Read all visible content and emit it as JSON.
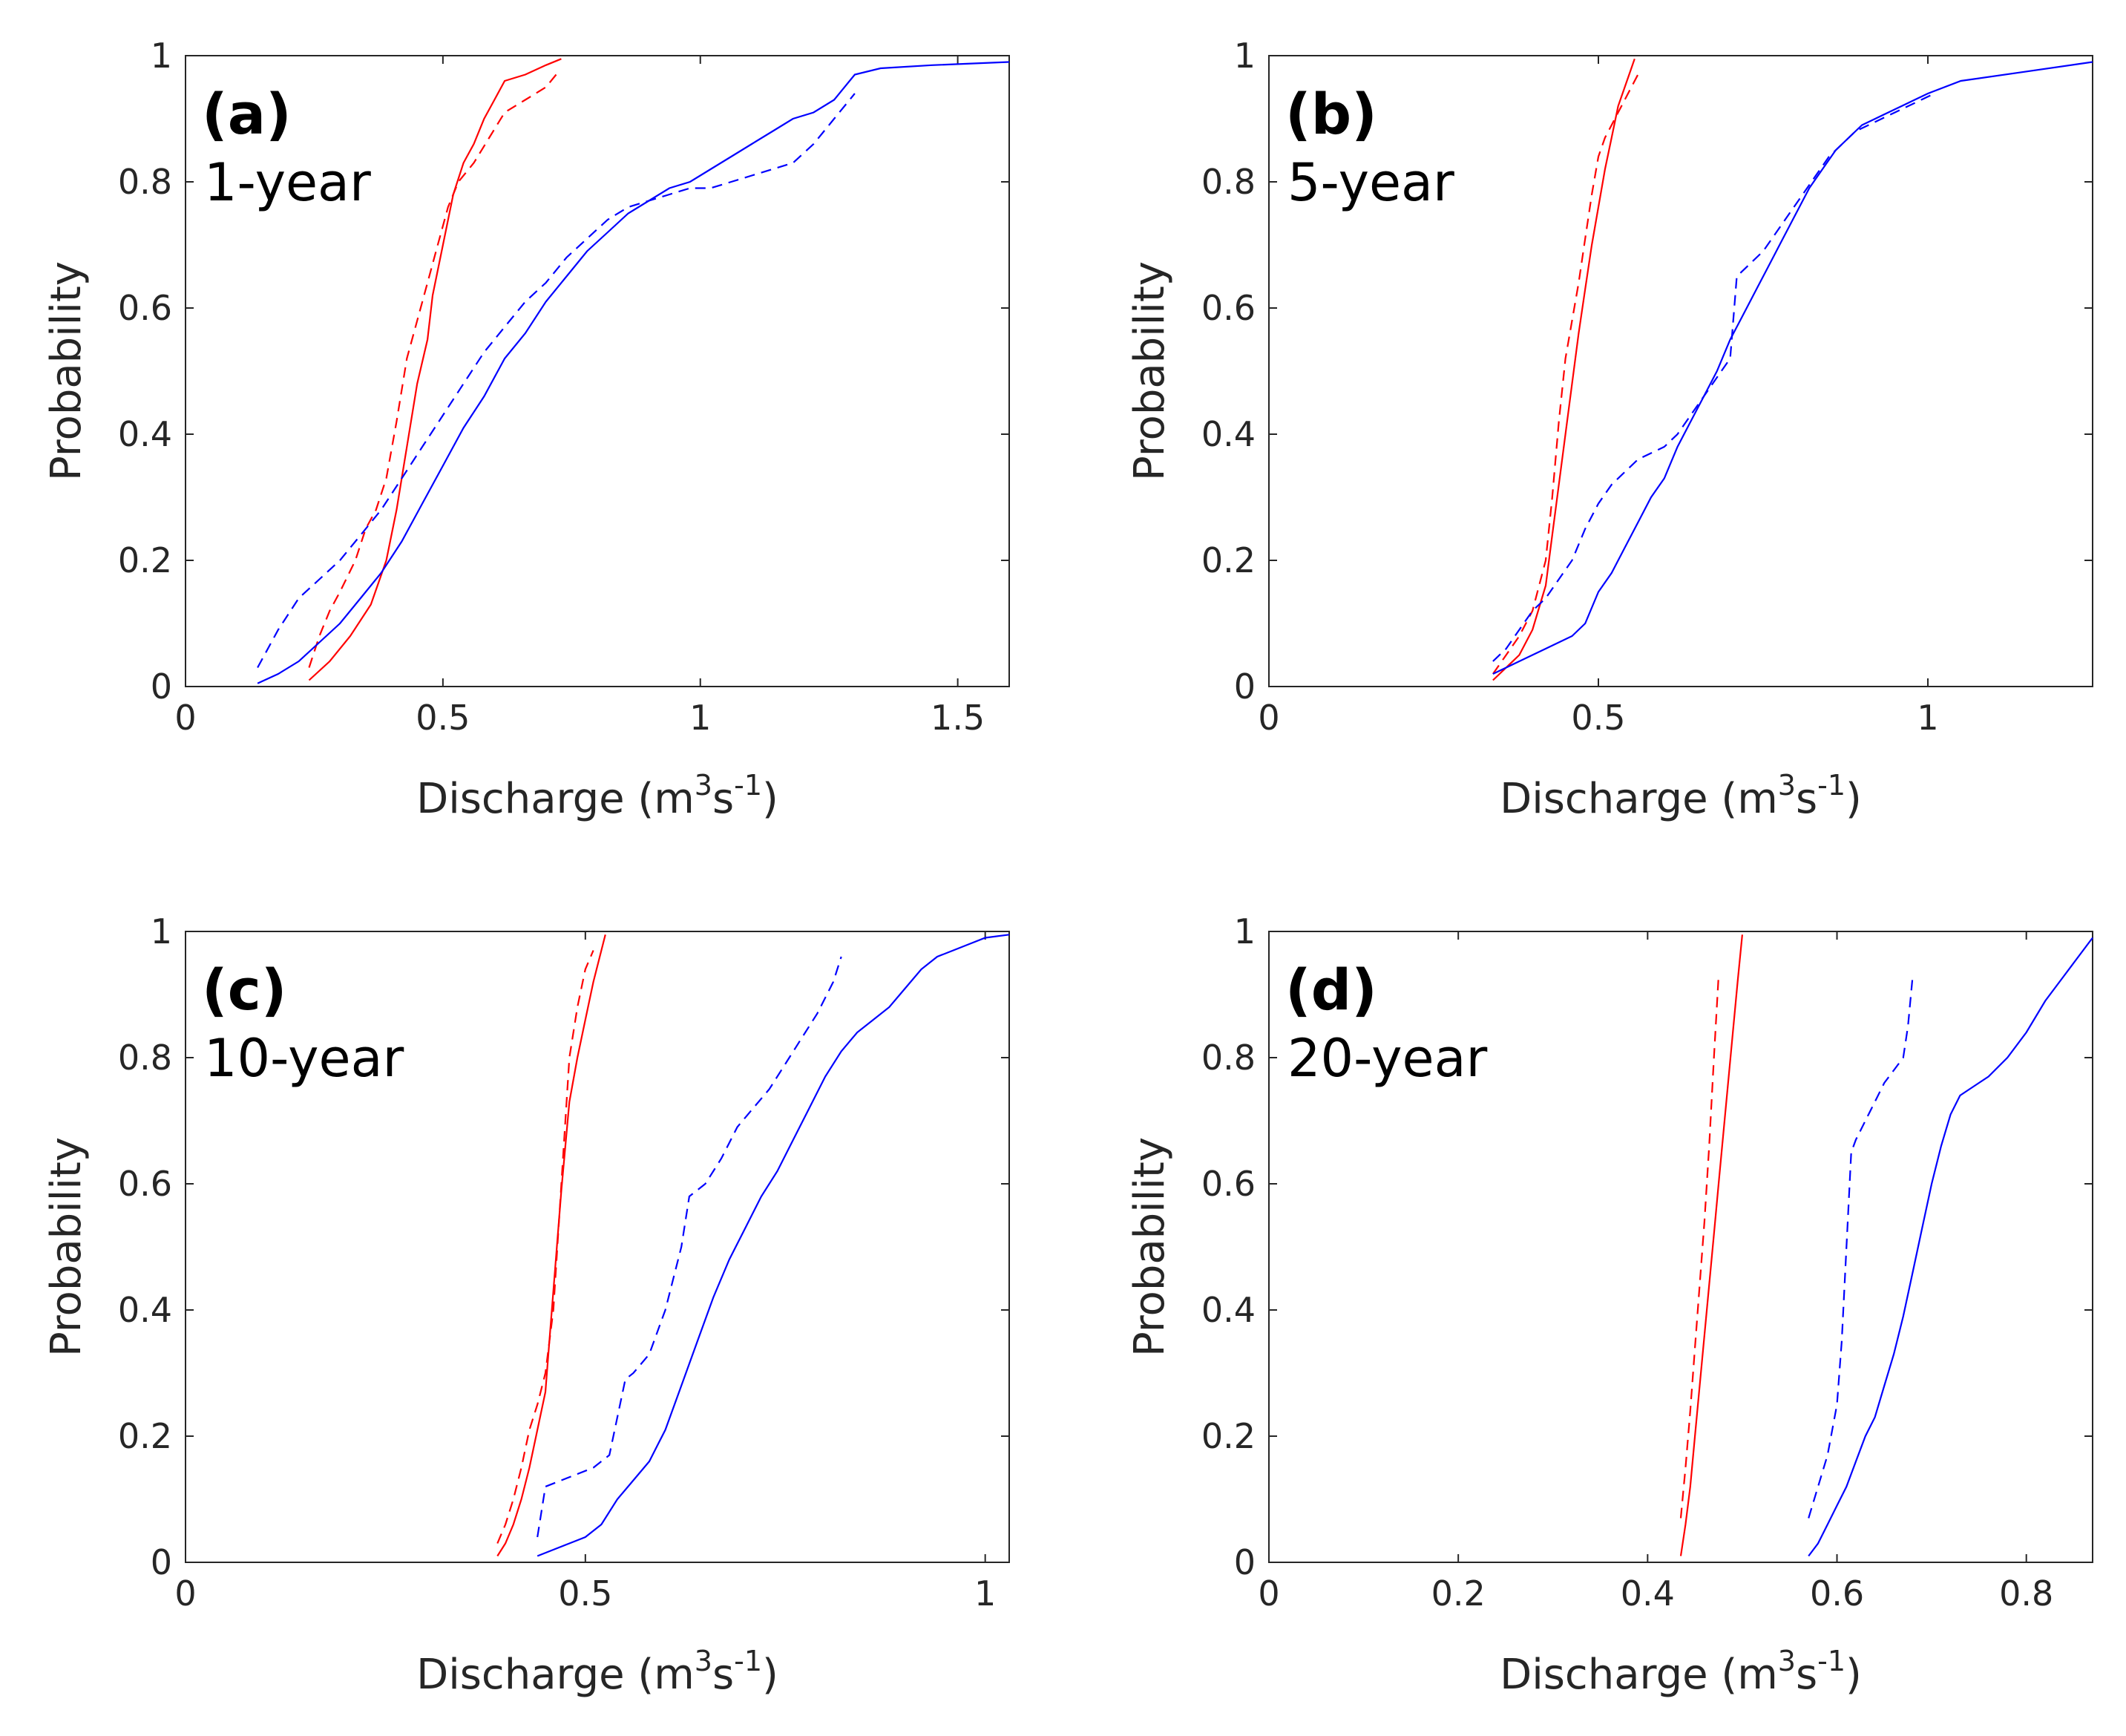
{
  "figure": {
    "xlabel_main": "Discharge (m",
    "xlabel_sup1": "3",
    "xlabel_mid": "s",
    "xlabel_sup2": "-1",
    "xlabel_end": ")",
    "ylabel": "Probability"
  },
  "colors": {
    "red": "#ff0000",
    "blue": "#0000ff",
    "axis": "#262626"
  },
  "chart_data": [
    {
      "type": "line",
      "panel_label": "(a)",
      "duration_label": "1-year",
      "xlim": [
        0,
        1.6
      ],
      "ylim": [
        0,
        1
      ],
      "xticks": [
        0,
        0.5,
        1,
        1.5
      ],
      "xtick_labels": [
        "0",
        "0.5",
        "1",
        "1.5"
      ],
      "yticks": [
        0,
        0.2,
        0.4,
        0.6,
        0.8,
        1
      ],
      "ytick_labels": [
        "0",
        "0.2",
        "0.4",
        "0.6",
        "0.8",
        "1"
      ],
      "series": [
        {
          "name": "red-solid",
          "color": "red",
          "dash": false,
          "x": [
            0.24,
            0.28,
            0.32,
            0.36,
            0.39,
            0.41,
            0.43,
            0.45,
            0.47,
            0.48,
            0.5,
            0.52,
            0.54,
            0.56,
            0.58,
            0.6,
            0.62,
            0.66,
            0.7,
            0.73
          ],
          "y": [
            0.01,
            0.04,
            0.08,
            0.13,
            0.2,
            0.28,
            0.38,
            0.48,
            0.55,
            0.62,
            0.7,
            0.78,
            0.83,
            0.86,
            0.9,
            0.93,
            0.96,
            0.97,
            0.985,
            0.995
          ]
        },
        {
          "name": "red-dashed",
          "color": "red",
          "dash": true,
          "x": [
            0.24,
            0.26,
            0.28,
            0.3,
            0.33,
            0.35,
            0.37,
            0.39,
            0.41,
            0.43,
            0.45,
            0.47,
            0.49,
            0.51,
            0.53,
            0.56,
            0.59,
            0.62,
            0.66,
            0.7,
            0.72
          ],
          "y": [
            0.03,
            0.08,
            0.12,
            0.15,
            0.2,
            0.25,
            0.28,
            0.33,
            0.42,
            0.52,
            0.58,
            0.64,
            0.7,
            0.76,
            0.8,
            0.83,
            0.87,
            0.91,
            0.93,
            0.95,
            0.97
          ]
        },
        {
          "name": "blue-solid",
          "color": "blue",
          "dash": false,
          "x": [
            0.14,
            0.18,
            0.22,
            0.26,
            0.3,
            0.34,
            0.38,
            0.42,
            0.46,
            0.5,
            0.54,
            0.58,
            0.62,
            0.66,
            0.7,
            0.74,
            0.78,
            0.82,
            0.86,
            0.9,
            0.94,
            0.98,
            1.02,
            1.06,
            1.1,
            1.14,
            1.18,
            1.22,
            1.26,
            1.3,
            1.35,
            1.45,
            1.6
          ],
          "y": [
            0.005,
            0.02,
            0.04,
            0.07,
            0.1,
            0.14,
            0.18,
            0.23,
            0.29,
            0.35,
            0.41,
            0.46,
            0.52,
            0.56,
            0.61,
            0.65,
            0.69,
            0.72,
            0.75,
            0.77,
            0.79,
            0.8,
            0.82,
            0.84,
            0.86,
            0.88,
            0.9,
            0.91,
            0.93,
            0.97,
            0.98,
            0.985,
            0.99
          ]
        },
        {
          "name": "blue-dashed",
          "color": "blue",
          "dash": true,
          "x": [
            0.14,
            0.18,
            0.22,
            0.26,
            0.3,
            0.34,
            0.38,
            0.42,
            0.46,
            0.5,
            0.54,
            0.58,
            0.62,
            0.66,
            0.7,
            0.74,
            0.78,
            0.82,
            0.86,
            0.9,
            0.94,
            0.98,
            1.02,
            1.06,
            1.1,
            1.14,
            1.18,
            1.22,
            1.26,
            1.3
          ],
          "y": [
            0.03,
            0.09,
            0.14,
            0.17,
            0.2,
            0.24,
            0.28,
            0.33,
            0.38,
            0.43,
            0.48,
            0.53,
            0.57,
            0.61,
            0.64,
            0.68,
            0.71,
            0.74,
            0.76,
            0.77,
            0.78,
            0.79,
            0.79,
            0.8,
            0.81,
            0.82,
            0.83,
            0.86,
            0.9,
            0.94
          ]
        }
      ]
    },
    {
      "type": "line",
      "panel_label": "(b)",
      "duration_label": "5-year",
      "xlim": [
        0,
        1.25
      ],
      "ylim": [
        0,
        1
      ],
      "xticks": [
        0,
        0.5,
        1
      ],
      "xtick_labels": [
        "0",
        "0.5",
        "1"
      ],
      "yticks": [
        0,
        0.2,
        0.4,
        0.6,
        0.8,
        1
      ],
      "ytick_labels": [
        "0",
        "0.2",
        "0.4",
        "0.6",
        "0.8",
        "1"
      ],
      "series": [
        {
          "name": "red-solid",
          "color": "red",
          "dash": false,
          "x": [
            0.34,
            0.36,
            0.38,
            0.4,
            0.42,
            0.43,
            0.44,
            0.45,
            0.46,
            0.47,
            0.48,
            0.49,
            0.5,
            0.51,
            0.52,
            0.53,
            0.54,
            0.55,
            0.555
          ],
          "y": [
            0.01,
            0.03,
            0.05,
            0.09,
            0.16,
            0.24,
            0.32,
            0.4,
            0.48,
            0.56,
            0.63,
            0.7,
            0.76,
            0.82,
            0.87,
            0.92,
            0.95,
            0.98,
            0.995
          ]
        },
        {
          "name": "red-dashed",
          "color": "red",
          "dash": true,
          "x": [
            0.34,
            0.36,
            0.38,
            0.4,
            0.42,
            0.43,
            0.44,
            0.45,
            0.46,
            0.47,
            0.48,
            0.49,
            0.5,
            0.51,
            0.52,
            0.53,
            0.54,
            0.55,
            0.56
          ],
          "y": [
            0.02,
            0.05,
            0.08,
            0.12,
            0.2,
            0.3,
            0.42,
            0.52,
            0.58,
            0.64,
            0.71,
            0.78,
            0.84,
            0.87,
            0.89,
            0.91,
            0.93,
            0.95,
            0.97
          ]
        },
        {
          "name": "blue-solid",
          "color": "blue",
          "dash": false,
          "x": [
            0.34,
            0.36,
            0.38,
            0.4,
            0.42,
            0.44,
            0.46,
            0.48,
            0.5,
            0.52,
            0.54,
            0.56,
            0.58,
            0.6,
            0.62,
            0.64,
            0.66,
            0.68,
            0.7,
            0.72,
            0.74,
            0.76,
            0.78,
            0.8,
            0.82,
            0.84,
            0.86,
            0.88,
            0.9,
            0.92,
            0.94,
            0.96,
            0.98,
            1.0,
            1.05,
            1.15,
            1.25
          ],
          "y": [
            0.02,
            0.03,
            0.04,
            0.05,
            0.06,
            0.07,
            0.08,
            0.1,
            0.15,
            0.18,
            0.22,
            0.26,
            0.3,
            0.33,
            0.38,
            0.42,
            0.46,
            0.5,
            0.55,
            0.59,
            0.63,
            0.67,
            0.71,
            0.75,
            0.79,
            0.82,
            0.85,
            0.87,
            0.89,
            0.9,
            0.91,
            0.92,
            0.93,
            0.94,
            0.96,
            0.975,
            0.99
          ]
        },
        {
          "name": "blue-dashed",
          "color": "blue",
          "dash": true,
          "x": [
            0.34,
            0.36,
            0.38,
            0.4,
            0.42,
            0.44,
            0.46,
            0.48,
            0.5,
            0.52,
            0.54,
            0.56,
            0.58,
            0.6,
            0.62,
            0.64,
            0.66,
            0.68,
            0.7,
            0.71,
            0.73,
            0.75,
            0.77,
            0.79,
            0.81,
            0.83,
            0.85,
            0.87,
            0.89,
            0.91,
            0.93,
            0.95,
            0.97,
            0.99,
            1.01
          ],
          "y": [
            0.04,
            0.06,
            0.09,
            0.12,
            0.14,
            0.17,
            0.2,
            0.25,
            0.29,
            0.32,
            0.34,
            0.36,
            0.37,
            0.38,
            0.4,
            0.43,
            0.46,
            0.49,
            0.52,
            0.65,
            0.67,
            0.69,
            0.72,
            0.75,
            0.78,
            0.81,
            0.84,
            0.86,
            0.88,
            0.89,
            0.9,
            0.91,
            0.92,
            0.93,
            0.94
          ]
        }
      ]
    },
    {
      "type": "line",
      "panel_label": "(c)",
      "duration_label": "10-year",
      "xlim": [
        0,
        1.03
      ],
      "ylim": [
        0,
        1
      ],
      "xticks": [
        0,
        0.5,
        1
      ],
      "xtick_labels": [
        "0",
        "0.5",
        "1"
      ],
      "yticks": [
        0,
        0.2,
        0.4,
        0.6,
        0.8,
        1
      ],
      "ytick_labels": [
        "0",
        "0.2",
        "0.4",
        "0.6",
        "0.8",
        "1"
      ],
      "series": [
        {
          "name": "red-solid",
          "color": "red",
          "dash": false,
          "x": [
            0.39,
            0.4,
            0.41,
            0.42,
            0.43,
            0.44,
            0.45,
            0.455,
            0.46,
            0.465,
            0.47,
            0.475,
            0.48,
            0.49,
            0.5,
            0.51,
            0.52,
            0.525
          ],
          "y": [
            0.01,
            0.03,
            0.06,
            0.1,
            0.15,
            0.21,
            0.27,
            0.35,
            0.43,
            0.51,
            0.59,
            0.66,
            0.73,
            0.8,
            0.86,
            0.92,
            0.97,
            0.995
          ]
        },
        {
          "name": "red-dashed",
          "color": "red",
          "dash": true,
          "x": [
            0.39,
            0.4,
            0.41,
            0.42,
            0.43,
            0.44,
            0.45,
            0.46,
            0.465,
            0.47,
            0.475,
            0.48,
            0.49,
            0.5,
            0.51
          ],
          "y": [
            0.03,
            0.06,
            0.1,
            0.15,
            0.21,
            0.25,
            0.3,
            0.4,
            0.5,
            0.6,
            0.7,
            0.8,
            0.88,
            0.94,
            0.97
          ]
        },
        {
          "name": "blue-solid",
          "color": "blue",
          "dash": false,
          "x": [
            0.44,
            0.46,
            0.48,
            0.5,
            0.52,
            0.54,
            0.56,
            0.58,
            0.6,
            0.62,
            0.64,
            0.66,
            0.68,
            0.7,
            0.72,
            0.74,
            0.76,
            0.78,
            0.8,
            0.82,
            0.84,
            0.86,
            0.88,
            0.9,
            0.92,
            0.94,
            0.96,
            0.98,
            1.0,
            1.03
          ],
          "y": [
            0.01,
            0.02,
            0.03,
            0.04,
            0.06,
            0.1,
            0.13,
            0.16,
            0.21,
            0.28,
            0.35,
            0.42,
            0.48,
            0.53,
            0.58,
            0.62,
            0.67,
            0.72,
            0.77,
            0.81,
            0.84,
            0.86,
            0.88,
            0.91,
            0.94,
            0.96,
            0.97,
            0.98,
            0.99,
            0.995
          ]
        },
        {
          "name": "blue-dashed",
          "color": "blue",
          "dash": true,
          "x": [
            0.44,
            0.45,
            0.47,
            0.49,
            0.51,
            0.53,
            0.55,
            0.56,
            0.58,
            0.6,
            0.62,
            0.63,
            0.65,
            0.67,
            0.69,
            0.71,
            0.73,
            0.75,
            0.77,
            0.79,
            0.81,
            0.82
          ],
          "y": [
            0.04,
            0.12,
            0.13,
            0.14,
            0.15,
            0.17,
            0.29,
            0.3,
            0.33,
            0.4,
            0.5,
            0.58,
            0.6,
            0.64,
            0.69,
            0.72,
            0.75,
            0.79,
            0.83,
            0.87,
            0.92,
            0.96
          ]
        }
      ]
    },
    {
      "type": "line",
      "panel_label": "(d)",
      "duration_label": "20-year",
      "xlim": [
        0,
        0.87
      ],
      "ylim": [
        0,
        1
      ],
      "xticks": [
        0,
        0.2,
        0.4,
        0.6,
        0.8
      ],
      "xtick_labels": [
        "0",
        "0.2",
        "0.4",
        "0.6",
        "0.8"
      ],
      "yticks": [
        0,
        0.2,
        0.4,
        0.6,
        0.8,
        1
      ],
      "ytick_labels": [
        "0",
        "0.2",
        "0.4",
        "0.6",
        "0.8",
        "1"
      ],
      "series": [
        {
          "name": "red-solid",
          "color": "red",
          "dash": false,
          "x": [
            0.435,
            0.44,
            0.445,
            0.45,
            0.455,
            0.46,
            0.465,
            0.47,
            0.475,
            0.48,
            0.485,
            0.49,
            0.495,
            0.5
          ],
          "y": [
            0.01,
            0.06,
            0.12,
            0.2,
            0.28,
            0.36,
            0.44,
            0.52,
            0.6,
            0.68,
            0.76,
            0.84,
            0.92,
            0.995
          ]
        },
        {
          "name": "red-dashed",
          "color": "red",
          "dash": true,
          "x": [
            0.435,
            0.44,
            0.445,
            0.45,
            0.455,
            0.46,
            0.465,
            0.47,
            0.475
          ],
          "y": [
            0.07,
            0.15,
            0.24,
            0.34,
            0.44,
            0.54,
            0.66,
            0.8,
            0.93
          ]
        },
        {
          "name": "blue-solid",
          "color": "blue",
          "dash": false,
          "x": [
            0.57,
            0.58,
            0.59,
            0.6,
            0.61,
            0.62,
            0.63,
            0.64,
            0.65,
            0.66,
            0.67,
            0.68,
            0.69,
            0.7,
            0.71,
            0.72,
            0.73,
            0.74,
            0.75,
            0.76,
            0.78,
            0.8,
            0.82,
            0.84,
            0.86,
            0.87
          ],
          "y": [
            0.01,
            0.03,
            0.06,
            0.09,
            0.12,
            0.16,
            0.2,
            0.23,
            0.28,
            0.33,
            0.39,
            0.46,
            0.53,
            0.6,
            0.66,
            0.71,
            0.74,
            0.75,
            0.76,
            0.77,
            0.8,
            0.84,
            0.89,
            0.93,
            0.97,
            0.99
          ]
        },
        {
          "name": "blue-dashed",
          "color": "blue",
          "dash": true,
          "x": [
            0.57,
            0.58,
            0.59,
            0.6,
            0.605,
            0.61,
            0.615,
            0.62,
            0.63,
            0.64,
            0.65,
            0.66,
            0.67,
            0.675,
            0.68
          ],
          "y": [
            0.07,
            0.12,
            0.17,
            0.25,
            0.35,
            0.5,
            0.65,
            0.67,
            0.7,
            0.73,
            0.76,
            0.78,
            0.8,
            0.85,
            0.93
          ]
        }
      ]
    }
  ]
}
